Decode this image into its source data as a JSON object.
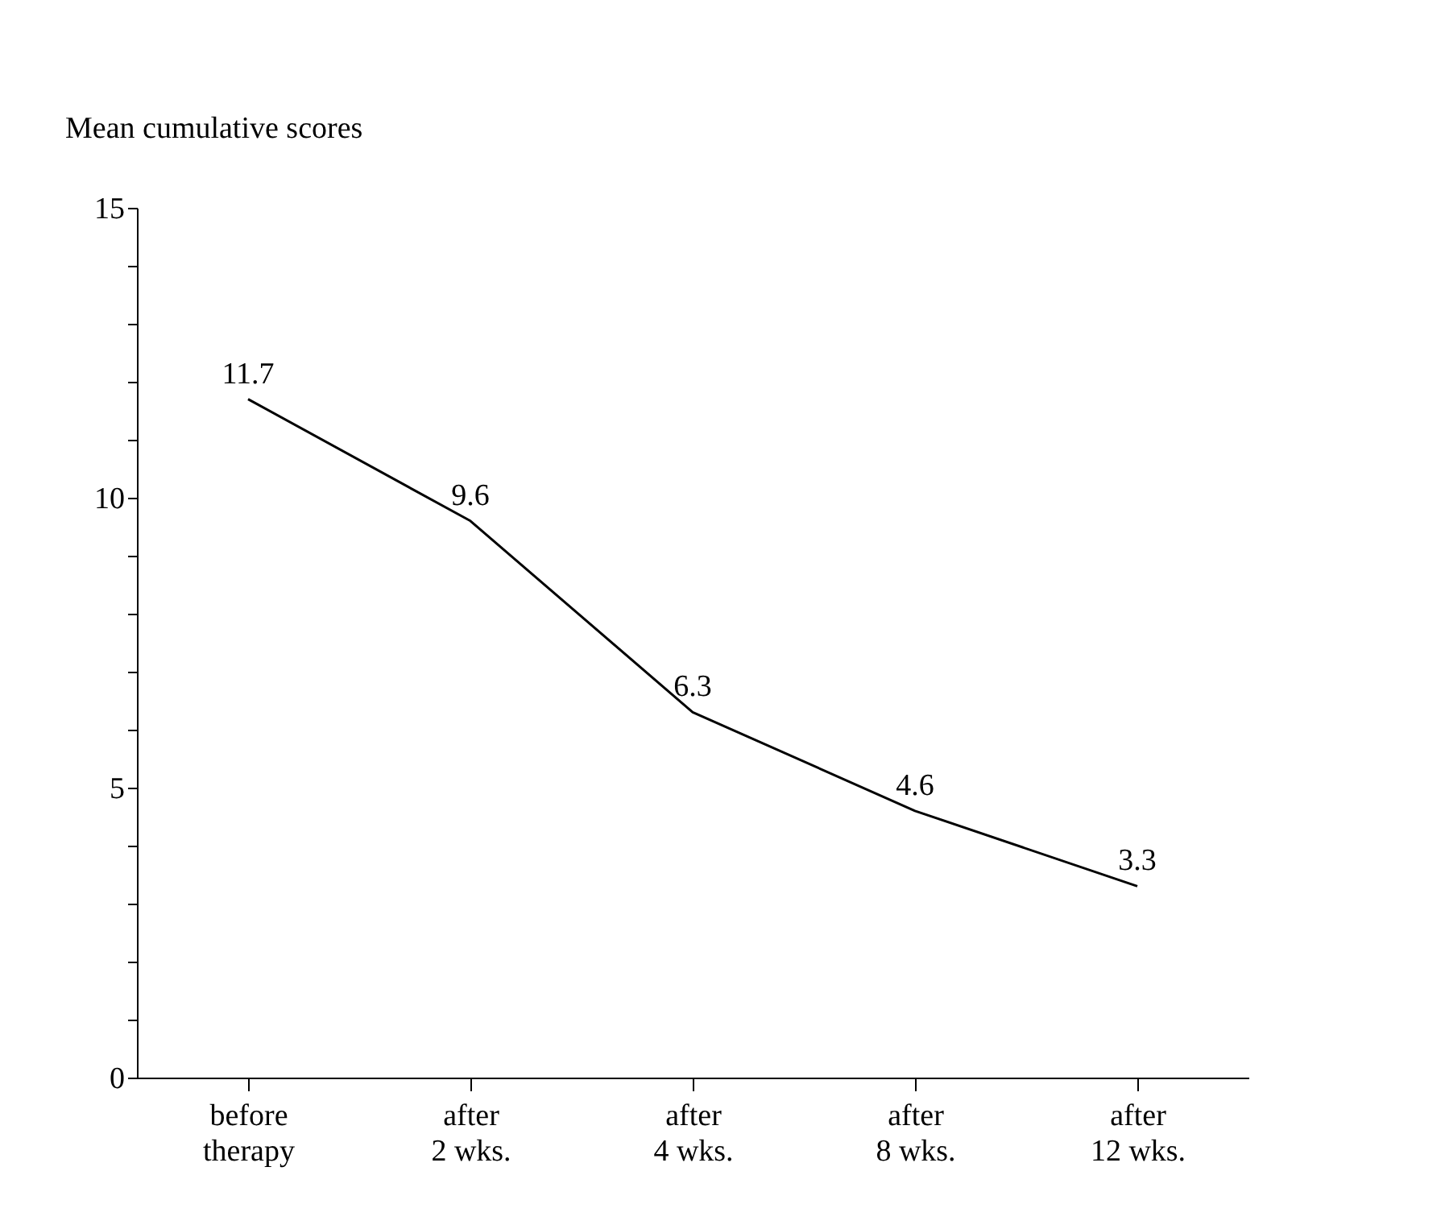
{
  "chart_data": {
    "type": "line",
    "ylabel": "Mean cumulative scores",
    "categories": [
      "before\ntherapy",
      "after\n2 wks.",
      "after\n4 wks.",
      "after\n8 wks.",
      "after\n12 wks."
    ],
    "series": [
      {
        "color": "#000000",
        "values": [
          11.7,
          9.6,
          6.3,
          4.6,
          3.3
        ]
      }
    ],
    "ylim": [
      0,
      15
    ],
    "yticks": [
      0,
      {
        "value": 1,
        "label": null
      },
      {
        "value": 2,
        "label": null
      },
      {
        "value": 3,
        "label": null
      },
      {
        "value": 4,
        "label": null
      },
      5,
      {
        "value": 6,
        "label": null
      },
      {
        "value": 7,
        "label": null
      },
      {
        "value": 8,
        "label": null
      },
      {
        "value": 9,
        "label": null
      },
      10,
      {
        "value": 11,
        "label": null
      },
      {
        "value": 12,
        "label": null
      },
      {
        "value": 13,
        "label": null
      },
      {
        "value": 14,
        "label": null
      },
      15
    ],
    "data_labels": true,
    "marker": "none",
    "line_style": "solid"
  }
}
